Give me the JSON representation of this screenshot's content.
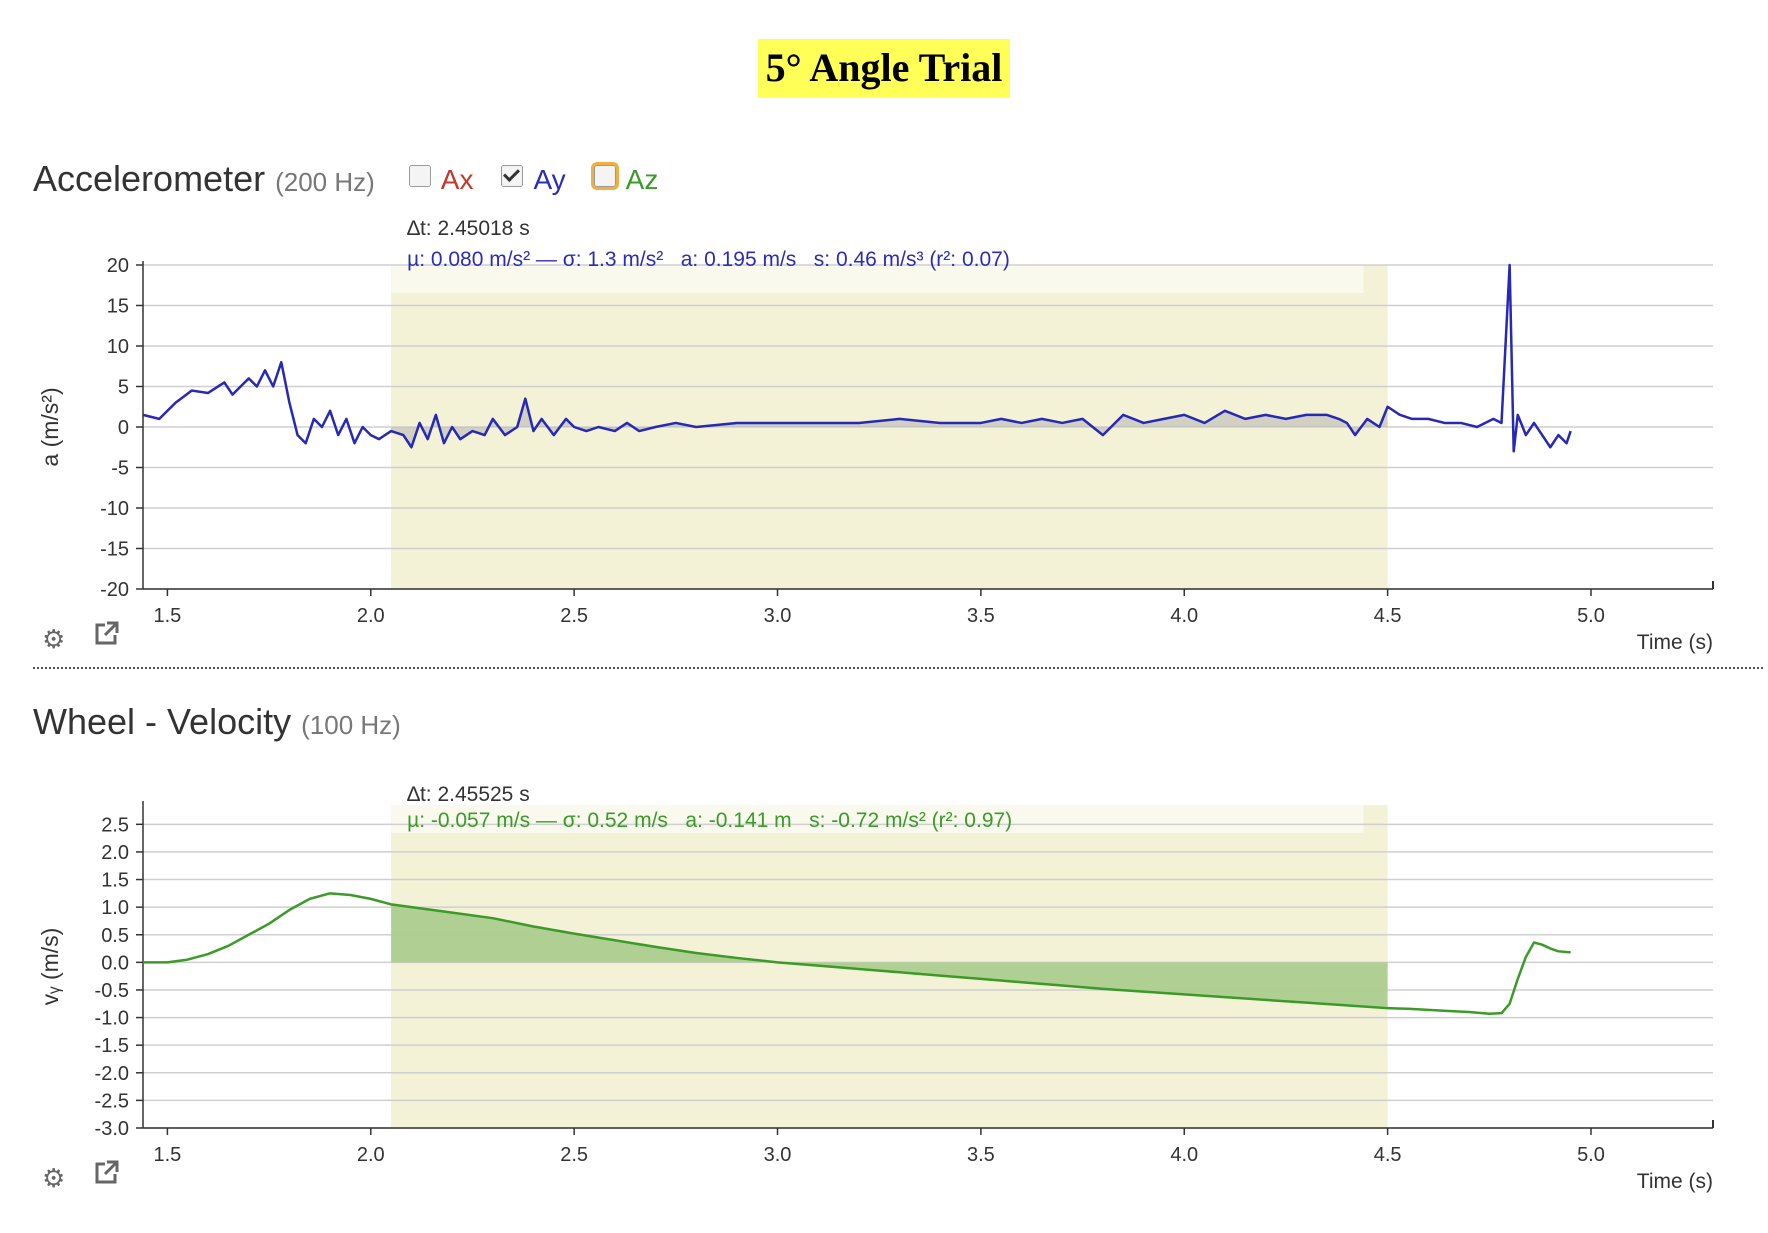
{
  "document": {
    "title": "5° Angle Trial"
  },
  "panels": [
    {
      "title": "Accelerometer",
      "rate": "(200 Hz)",
      "toggles": [
        {
          "label": "Ax",
          "checked": false,
          "color": "#c0392b"
        },
        {
          "label": "Ay",
          "checked": true,
          "color": "#2c2cb4"
        },
        {
          "label": "Az",
          "checked": false,
          "color": "#3a9a2a",
          "focused": true
        }
      ],
      "stats": {
        "dt": "∆t: 2.45018 s",
        "line": "µ: 0.080 m/s² — σ: 1.3 m/s²   a: 0.195 m/s   s: 0.46 m/s³ (r²: 0.07)"
      }
    },
    {
      "title": "Wheel - Velocity",
      "rate": "(100 Hz)",
      "stats": {
        "dt": "∆t: 2.45525 s",
        "line": "µ: -0.057 m/s — σ: 0.52 m/s   a: -0.141 m   s: -0.72 m/s² (r²: 0.97)"
      }
    }
  ],
  "icons": {
    "settings": "gear-icon",
    "export": "external-link-icon"
  },
  "chart_data": [
    {
      "type": "line",
      "ylabel": "a (m/s²)",
      "xlabel": "Time (s)",
      "xlim": [
        1.44,
        5.3
      ],
      "ylim": [
        -20,
        20
      ],
      "xticks": [
        "1.5",
        "2.0",
        "2.5",
        "3.0",
        "3.5",
        "4.0",
        "4.5",
        "5.0"
      ],
      "yticks": [
        "20",
        "15",
        "10",
        "5",
        "0",
        "-5",
        "-10",
        "-15",
        "-20"
      ],
      "selection": [
        2.05,
        4.5
      ],
      "grid": true,
      "series": [
        {
          "label": "Ay",
          "color": "#2828b4",
          "x": [
            1.44,
            1.48,
            1.52,
            1.56,
            1.6,
            1.64,
            1.66,
            1.7,
            1.72,
            1.74,
            1.76,
            1.78,
            1.8,
            1.82,
            1.84,
            1.86,
            1.88,
            1.9,
            1.92,
            1.94,
            1.96,
            1.98,
            2.0,
            2.02,
            2.05,
            2.08,
            2.1,
            2.12,
            2.14,
            2.16,
            2.18,
            2.2,
            2.22,
            2.25,
            2.28,
            2.3,
            2.33,
            2.36,
            2.38,
            2.4,
            2.42,
            2.45,
            2.48,
            2.5,
            2.53,
            2.56,
            2.6,
            2.63,
            2.66,
            2.7,
            2.75,
            2.8,
            2.9,
            3.0,
            3.1,
            3.2,
            3.3,
            3.4,
            3.5,
            3.55,
            3.6,
            3.65,
            3.7,
            3.75,
            3.8,
            3.85,
            3.9,
            3.95,
            4.0,
            4.05,
            4.1,
            4.15,
            4.2,
            4.25,
            4.3,
            4.35,
            4.38,
            4.4,
            4.42,
            4.45,
            4.48,
            4.5,
            4.53,
            4.56,
            4.6,
            4.64,
            4.68,
            4.72,
            4.76,
            4.78,
            4.8,
            4.81,
            4.82,
            4.84,
            4.86,
            4.88,
            4.9,
            4.92,
            4.94,
            4.95
          ],
          "y": [
            1.5,
            1,
            3,
            4.5,
            4.2,
            5.5,
            4,
            6,
            5,
            7,
            5,
            8,
            3,
            -1,
            -2,
            1,
            0,
            2,
            -1,
            1,
            -2,
            0,
            -1,
            -1.5,
            -0.5,
            -1,
            -2.5,
            0.5,
            -1.5,
            1.5,
            -2,
            0,
            -1.5,
            -0.5,
            -1,
            1,
            -1,
            0,
            3.5,
            -0.5,
            1,
            -1,
            1,
            0,
            -0.5,
            0,
            -0.5,
            0.5,
            -0.5,
            0,
            0.5,
            0,
            0.5,
            0.5,
            0.5,
            0.5,
            1,
            0.5,
            0.5,
            1,
            0.5,
            1,
            0.5,
            1,
            -1,
            1.5,
            0.5,
            1,
            1.5,
            0.5,
            2,
            1,
            1.5,
            1,
            1.5,
            1.5,
            1,
            0.5,
            -1,
            1,
            0,
            2.5,
            1.5,
            1,
            1,
            0.5,
            0.5,
            0,
            1,
            0.5,
            20,
            -3,
            1.5,
            -1,
            0.5,
            -1,
            -2.5,
            -1,
            -2,
            -0.5
          ]
        }
      ]
    },
    {
      "type": "line",
      "ylabel": "vᵧ (m/s)",
      "xlabel": "Time (s)",
      "xlim": [
        1.44,
        5.3
      ],
      "ylim": [
        -3,
        2.85
      ],
      "xticks": [
        "1.5",
        "2.0",
        "2.5",
        "3.0",
        "3.5",
        "4.0",
        "4.5",
        "5.0"
      ],
      "yticks": [
        "2.5",
        "2.0",
        "1.5",
        "1.0",
        "0.5",
        "0.0",
        "-0.5",
        "-1.0",
        "-1.5",
        "-2.0",
        "-2.5",
        "-3.0"
      ],
      "selection": [
        2.05,
        4.5
      ],
      "grid": true,
      "series": [
        {
          "label": "vy",
          "color": "#3c9a28",
          "x": [
            1.44,
            1.5,
            1.55,
            1.6,
            1.65,
            1.7,
            1.75,
            1.8,
            1.85,
            1.9,
            1.95,
            2.0,
            2.05,
            2.1,
            2.2,
            2.3,
            2.4,
            2.5,
            2.6,
            2.7,
            2.8,
            2.9,
            3.0,
            3.1,
            3.2,
            3.3,
            3.4,
            3.5,
            3.6,
            3.7,
            3.8,
            3.9,
            4.0,
            4.1,
            4.2,
            4.3,
            4.4,
            4.5,
            4.55,
            4.6,
            4.65,
            4.7,
            4.75,
            4.78,
            4.8,
            4.82,
            4.84,
            4.86,
            4.88,
            4.9,
            4.92,
            4.95
          ],
          "y": [
            0,
            0,
            0.05,
            0.15,
            0.3,
            0.5,
            0.7,
            0.95,
            1.15,
            1.25,
            1.22,
            1.15,
            1.05,
            1.0,
            0.9,
            0.8,
            0.65,
            0.52,
            0.4,
            0.28,
            0.17,
            0.08,
            0.0,
            -0.06,
            -0.12,
            -0.18,
            -0.24,
            -0.3,
            -0.36,
            -0.42,
            -0.48,
            -0.53,
            -0.58,
            -0.63,
            -0.68,
            -0.73,
            -0.78,
            -0.83,
            -0.84,
            -0.86,
            -0.88,
            -0.9,
            -0.93,
            -0.92,
            -0.75,
            -0.3,
            0.1,
            0.36,
            0.32,
            0.25,
            0.2,
            0.18
          ]
        }
      ]
    }
  ]
}
